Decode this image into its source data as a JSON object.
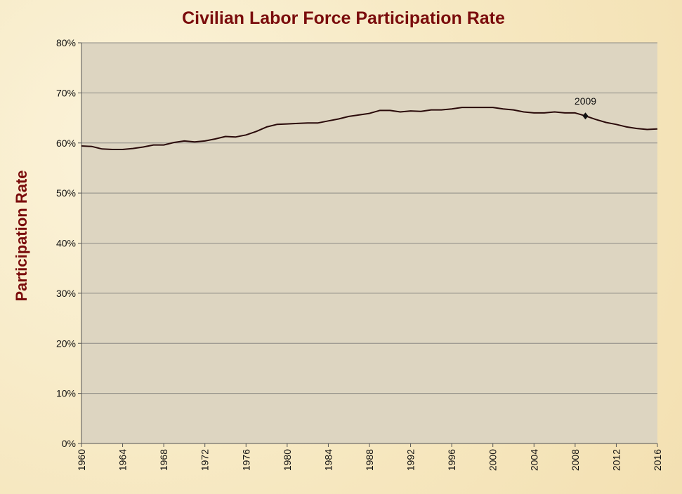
{
  "chart_data": {
    "type": "line",
    "title": "Civilian Labor Force Participation Rate",
    "xlabel": "",
    "ylabel": "Participation Rate",
    "xlim": [
      1960,
      2016
    ],
    "ylim": [
      0,
      80
    ],
    "x_ticks": [
      "1960",
      "1964",
      "1968",
      "1972",
      "1976",
      "1980",
      "1984",
      "1988",
      "1992",
      "1996",
      "2000",
      "2004",
      "2008",
      "2012",
      "2016"
    ],
    "y_ticks": [
      "0%",
      "10%",
      "20%",
      "30%",
      "40%",
      "50%",
      "60%",
      "70%",
      "80%"
    ],
    "grid": true,
    "legend": "none",
    "colors": {
      "line": "#2a0a0a",
      "plot_bg": "#ddd5c1",
      "title": "#7a0c0c",
      "grid": "#8c8a85"
    },
    "series": [
      {
        "x": [
          1960,
          1961,
          1962,
          1963,
          1964,
          1965,
          1966,
          1967,
          1968,
          1969,
          1970,
          1971,
          1972,
          1973,
          1974,
          1975,
          1976,
          1977,
          1978,
          1979,
          1980,
          1981,
          1982,
          1983,
          1984,
          1985,
          1986,
          1987,
          1988,
          1989,
          1990,
          1991,
          1992,
          1993,
          1994,
          1995,
          1996,
          1997,
          1998,
          1999,
          2000,
          2001,
          2002,
          2003,
          2004,
          2005,
          2006,
          2007,
          2008,
          2009,
          2010,
          2011,
          2012,
          2013,
          2014,
          2015,
          2016
        ],
        "values": [
          59.4,
          59.3,
          58.8,
          58.7,
          58.7,
          58.9,
          59.2,
          59.6,
          59.6,
          60.1,
          60.4,
          60.2,
          60.4,
          60.8,
          61.3,
          61.2,
          61.6,
          62.3,
          63.2,
          63.7,
          63.8,
          63.9,
          64.0,
          64.0,
          64.4,
          64.8,
          65.3,
          65.6,
          65.9,
          66.5,
          66.5,
          66.2,
          66.4,
          66.3,
          66.6,
          66.6,
          66.8,
          67.1,
          67.1,
          67.1,
          67.1,
          66.8,
          66.6,
          66.2,
          66.0,
          66.0,
          66.2,
          66.0,
          66.0,
          65.4,
          64.7,
          64.1,
          63.7,
          63.2,
          62.9,
          62.7,
          62.8
        ]
      }
    ],
    "annotations": [
      {
        "label": "2009",
        "x": 2009,
        "y": 65.4
      }
    ]
  }
}
